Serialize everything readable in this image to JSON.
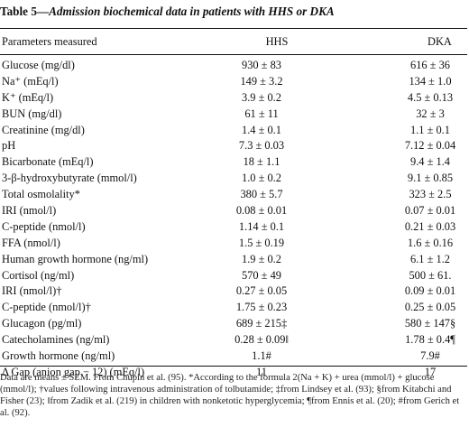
{
  "table": {
    "label": "Table 5—",
    "title": "Admission biochemical data in patients with HHS or DKA",
    "columns": {
      "param": "Parameters measured",
      "hhs": "HHS",
      "dka": "DKA"
    },
    "rows": [
      {
        "param": "Glucose (mg/dl)",
        "hhs": "930 ± 83",
        "dka": "616 ± 36"
      },
      {
        "param": "Na⁺ (mEq/l)",
        "hhs": "149 ± 3.2",
        "dka": "134 ± 1.0"
      },
      {
        "param": "K⁺ (mEq/l)",
        "hhs": "3.9 ± 0.2",
        "dka": "4.5 ± 0.13"
      },
      {
        "param": "BUN (mg/dl)",
        "hhs": "61 ± 11",
        "dka": "32 ± 3"
      },
      {
        "param": "Creatinine (mg/dl)",
        "hhs": "1.4 ± 0.1",
        "dka": "1.1 ± 0.1"
      },
      {
        "param": "pH",
        "hhs": "7.3 ± 0.03",
        "dka": "7.12 ± 0.04"
      },
      {
        "param": "Bicarbonate (mEq/l)",
        "hhs": "18 ± 1.1",
        "dka": "9.4 ± 1.4"
      },
      {
        "param": "3-β-hydroxybutyrate (mmol/l)",
        "hhs": "1.0 ± 0.2",
        "dka": "9.1 ± 0.85"
      },
      {
        "param": "Total osmolality*",
        "hhs": "380 ± 5.7",
        "dka": "323 ± 2.5"
      },
      {
        "param": "IRI (nmol/l)",
        "hhs": "0.08 ± 0.01",
        "dka": "0.07 ± 0.01"
      },
      {
        "param": "C-peptide (nmol/l)",
        "hhs": "1.14 ± 0.1",
        "dka": "0.21 ± 0.03"
      },
      {
        "param": "FFA (nmol/l)",
        "hhs": "1.5 ± 0.19",
        "dka": "1.6 ± 0.16"
      },
      {
        "param": "Human growth hormone (ng/ml)",
        "hhs": "1.9 ± 0.2",
        "dka": "6.1 ± 1.2"
      },
      {
        "param": "Cortisol (ng/ml)",
        "hhs": "570 ± 49",
        "dka": "500 ± 61."
      },
      {
        "param": "IRI (nmol/l)†",
        "hhs": "0.27 ± 0.05",
        "dka": "0.09 ± 0.01"
      },
      {
        "param": "C-peptide (nmol/l)†",
        "hhs": "1.75 ± 0.23",
        "dka": "0.25 ± 0.05"
      },
      {
        "param": "Glucagon (pg/ml)",
        "hhs": "689 ± 215‡",
        "dka": "580 ± 147§"
      },
      {
        "param": "Catecholamines (ng/ml)",
        "hhs": "0.28 ± 0.09‖",
        "dka": "1.78 ± 0.4¶"
      },
      {
        "param": "Growth hormone (ng/ml)",
        "hhs": "1.1#",
        "dka": "7.9#"
      },
      {
        "param": "Δ Gap (anion gap − 12) (mEq/l)",
        "hhs": "11",
        "dka": "17"
      }
    ],
    "footnote": "Data are means ± SEM. From Chupin et al. (95). *According to the formula 2(Na + K) + urea (mmol/l) + glucose (mmol/l); †values following intravenous administration of tolbutamide; ‡from Lindsey et al. (93); §from Kitabchi and Fisher (23); ‖from Zadik et al. (219) in children with nonketotic hyperglycemia; ¶from Ennis et al. (20); #from Gerich et al. (92)."
  }
}
